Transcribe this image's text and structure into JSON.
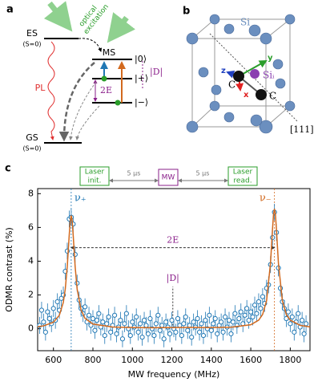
{
  "panel_a": {
    "label": "a",
    "es": "ES",
    "es_spin": "(S=0)",
    "gs": "GS",
    "gs_spin": "(S=0)",
    "excitation_1": "optical",
    "excitation_2": "excitation",
    "pl": "PL",
    "ms": "MS",
    "level_0": "|0⟩",
    "level_plus": "|+⟩",
    "level_minus": "|−⟩",
    "splitting": "2E",
    "zfs": "|D|"
  },
  "panel_b": {
    "label": "b",
    "si": "Si",
    "si_i": "Siᵢ",
    "c1": "C",
    "c2": "C",
    "axis_x": "x",
    "axis_y": "y",
    "axis_z": "z",
    "direction": "[111]"
  },
  "panel_c_label": "c",
  "pulse_sequence": {
    "laser_init": [
      "Laser",
      "init."
    ],
    "wait_1": "5 μs",
    "mw": "MW",
    "wait_2": "5 μs",
    "laser_read": [
      "Laser",
      "read."
    ]
  },
  "chart_data": {
    "type": "scatter",
    "xlabel": "MW frequency (MHz)",
    "ylabel": "ODMR contrast (%)",
    "xlim": [
      520,
      1900
    ],
    "ylim": [
      -1.3,
      8.3
    ],
    "xticks": [
      600,
      800,
      1000,
      1200,
      1400,
      1600,
      1800
    ],
    "yticks": [
      0,
      2,
      4,
      6,
      8
    ],
    "series": [
      {
        "kind": "points",
        "color": "#1f77b4",
        "yerr": 0.5,
        "x": [
          530,
          540,
          550,
          560,
          570,
          580,
          590,
          600,
          610,
          620,
          630,
          640,
          650,
          660,
          670,
          680,
          690,
          700,
          710,
          720,
          730,
          740,
          750,
          760,
          770,
          780,
          790,
          800,
          810,
          820,
          830,
          840,
          850,
          860,
          870,
          880,
          890,
          900,
          910,
          920,
          930,
          940,
          950,
          960,
          970,
          980,
          990,
          1000,
          1010,
          1020,
          1030,
          1040,
          1050,
          1060,
          1070,
          1080,
          1090,
          1100,
          1110,
          1120,
          1130,
          1140,
          1150,
          1160,
          1170,
          1180,
          1190,
          1200,
          1210,
          1220,
          1230,
          1240,
          1250,
          1260,
          1270,
          1280,
          1290,
          1300,
          1310,
          1320,
          1330,
          1340,
          1350,
          1360,
          1370,
          1380,
          1390,
          1400,
          1410,
          1420,
          1430,
          1440,
          1450,
          1460,
          1470,
          1480,
          1490,
          1500,
          1510,
          1520,
          1530,
          1540,
          1550,
          1560,
          1570,
          1580,
          1590,
          1600,
          1610,
          1620,
          1630,
          1640,
          1650,
          1660,
          1670,
          1680,
          1690,
          1700,
          1710,
          1720,
          1730,
          1740,
          1750,
          1760,
          1770,
          1780,
          1790,
          1800,
          1810,
          1820,
          1830,
          1840,
          1850,
          1860,
          1870,
          1880
        ],
        "values": [
          0.2,
          1.1,
          0.4,
          -0.2,
          1.0,
          0.6,
          0.3,
          1.2,
          0.5,
          1.6,
          1.1,
          1.8,
          2.0,
          3.4,
          4.6,
          6.5,
          6.6,
          6.2,
          4.4,
          2.7,
          1.7,
          1.2,
          0.9,
          1.3,
          0.4,
          0.8,
          0.2,
          0.6,
          -0.1,
          0.5,
          0.9,
          0.1,
          0.4,
          -0.4,
          0.3,
          0.7,
          -0.2,
          0.2,
          0.8,
          -0.3,
          0.1,
          0.5,
          -0.6,
          0.3,
          0.9,
          0.0,
          -0.4,
          0.4,
          0.1,
          0.7,
          -0.2,
          0.3,
          -0.5,
          0.5,
          0.2,
          -0.3,
          0.6,
          0.0,
          -0.4,
          0.3,
          0.8,
          -0.1,
          0.2,
          -0.6,
          0.4,
          0.1,
          -0.3,
          0.5,
          0.0,
          -0.2,
          0.6,
          0.2,
          -0.4,
          0.3,
          0.7,
          -0.1,
          0.2,
          -0.5,
          0.4,
          0.1,
          0.6,
          -0.2,
          0.3,
          -0.4,
          0.5,
          0.0,
          0.8,
          -0.1,
          0.3,
          0.6,
          -0.3,
          0.2,
          0.4,
          -0.2,
          0.7,
          0.1,
          0.5,
          -0.3,
          0.4,
          0.9,
          0.2,
          0.6,
          1.0,
          0.3,
          0.8,
          1.2,
          0.5,
          1.0,
          0.7,
          1.4,
          0.9,
          1.6,
          1.2,
          1.9,
          1.5,
          2.4,
          2.6,
          3.8,
          5.4,
          6.9,
          5.7,
          3.6,
          2.4,
          1.6,
          1.2,
          0.6,
          1.0,
          0.3,
          0.7,
          -0.2,
          0.4,
          0.9,
          0.1,
          0.5,
          -0.3,
          0.3
        ]
      },
      {
        "kind": "line",
        "color": "#d2691e",
        "x": [
          520,
          550,
          600,
          630,
          650,
          660,
          670,
          680,
          685,
          690,
          695,
          700,
          710,
          720,
          740,
          760,
          800,
          900,
          1000,
          1100,
          1200,
          1300,
          1400,
          1500,
          1600,
          1640,
          1660,
          1680,
          1700,
          1710,
          1715,
          1720,
          1725,
          1730,
          1740,
          1760,
          1780,
          1800,
          1850,
          1900
        ],
        "values": [
          0.12,
          0.17,
          0.39,
          0.8,
          1.56,
          2.35,
          3.68,
          5.55,
          6.37,
          6.71,
          6.38,
          5.56,
          3.68,
          2.36,
          1.11,
          0.62,
          0.28,
          0.1,
          0.07,
          0.06,
          0.07,
          0.08,
          0.07,
          0.09,
          0.24,
          0.51,
          0.85,
          1.66,
          3.89,
          5.88,
          6.75,
          7.1,
          6.75,
          5.88,
          3.89,
          1.66,
          0.85,
          0.51,
          0.2,
          0.11
        ]
      }
    ],
    "reference_lines": [
      {
        "x": 690,
        "color": "#1f77b4",
        "label": "ν₊"
      },
      {
        "x": 1720,
        "color": "#d2691e",
        "label": "ν₋"
      }
    ],
    "splitting": {
      "label": "2E",
      "y": 4.8,
      "x": [
        690,
        1720
      ]
    },
    "zero_field": {
      "label": "|D|",
      "x": 1205,
      "y": [
        0,
        2.5
      ]
    }
  }
}
